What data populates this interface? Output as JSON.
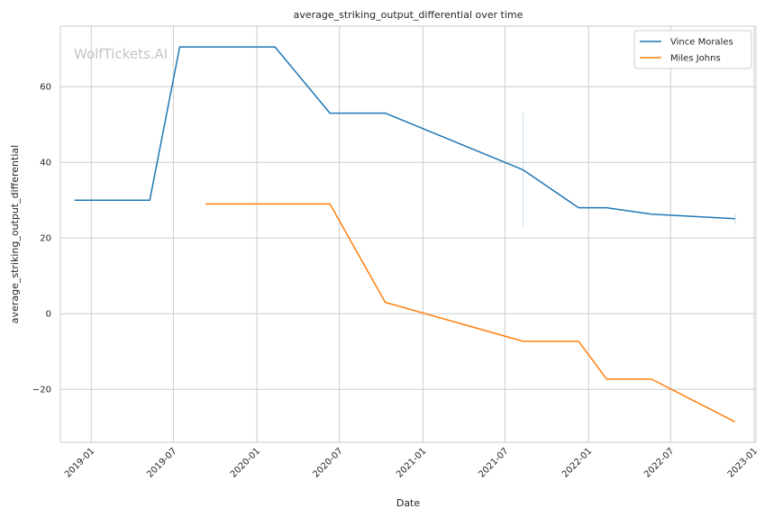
{
  "watermark": "WolfTickets.AI",
  "chart_data": {
    "type": "line",
    "title": "average_striking_output_differential over time",
    "xlabel": "Date",
    "ylabel": "average_striking_output_differential",
    "xlim": [
      "2018-10-25",
      "2023-01-05"
    ],
    "ylim": [
      -34,
      76
    ],
    "x_ticks": [
      "2019-01",
      "2019-07",
      "2020-01",
      "2020-07",
      "2021-01",
      "2021-07",
      "2022-01",
      "2022-07",
      "2023-01"
    ],
    "y_ticks": [
      -20,
      0,
      20,
      40,
      60
    ],
    "grid": true,
    "legend_position": "top-right",
    "series": [
      {
        "name": "Vince Morales",
        "color": "#1f77b4",
        "points": [
          [
            "2018-11-25",
            30
          ],
          [
            "2019-05-10",
            30
          ],
          [
            "2019-07-15",
            70.5
          ],
          [
            "2020-02-10",
            70.5
          ],
          [
            "2020-06-10",
            53
          ],
          [
            "2020-10-10",
            53
          ],
          [
            "2021-08-10",
            38
          ],
          [
            "2021-12-10",
            28
          ],
          [
            "2022-02-10",
            28
          ],
          [
            "2022-05-20",
            26.3
          ],
          [
            "2022-11-20",
            25.1
          ]
        ],
        "error_bars": [
          {
            "x": "2021-08-10",
            "low": 23,
            "high": 53
          },
          {
            "x": "2022-11-20",
            "low": 23.5,
            "high": 26.5
          }
        ]
      },
      {
        "name": "Miles Johns",
        "color": "#ff7f0e",
        "points": [
          [
            "2019-09-10",
            29
          ],
          [
            "2020-06-10",
            29
          ],
          [
            "2020-10-10",
            3
          ],
          [
            "2021-08-10",
            -7.3
          ],
          [
            "2021-12-10",
            -7.3
          ],
          [
            "2022-02-10",
            -17.3
          ],
          [
            "2022-05-20",
            -17.3
          ],
          [
            "2022-11-20",
            -28.6
          ]
        ],
        "error_bars": []
      }
    ]
  }
}
